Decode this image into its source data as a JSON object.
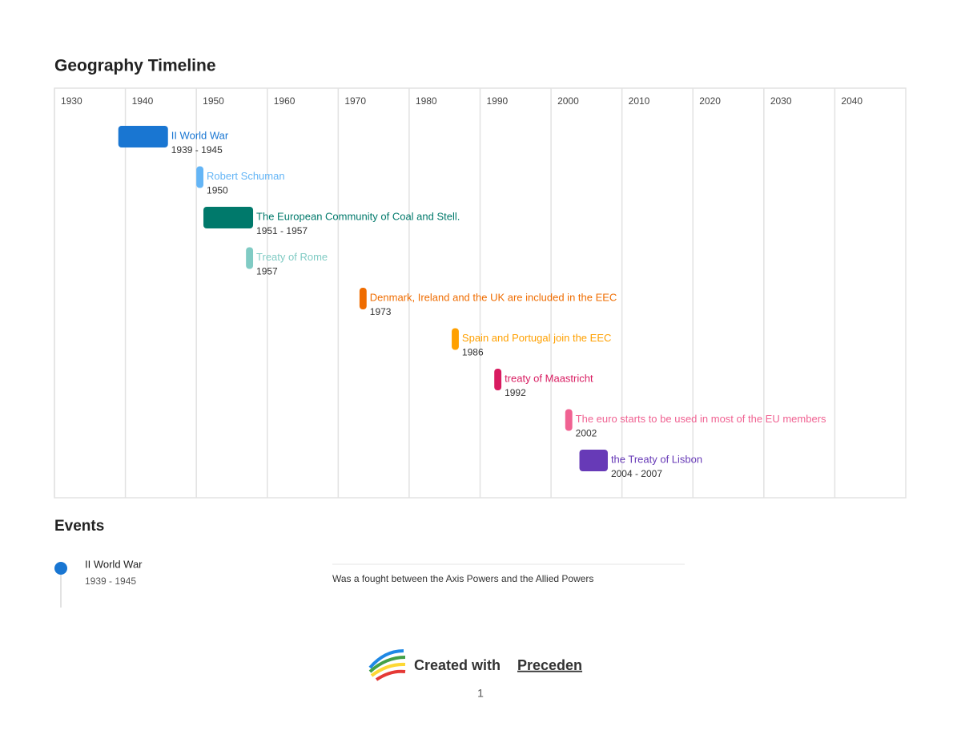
{
  "title": "Geography Timeline",
  "axis": {
    "lim": [
      1930,
      2050
    ],
    "ticks": [
      1930,
      1940,
      1950,
      1960,
      1970,
      1980,
      1990,
      2000,
      2010,
      2020,
      2030,
      2040
    ]
  },
  "events": [
    {
      "name": "II World War",
      "dates": "1939 - 1945",
      "start": 1939,
      "end": 1945,
      "color": "#1976d2"
    },
    {
      "name": "Robert Schuman",
      "dates": "1950",
      "start": 1950,
      "end": 1950,
      "color": "#64b5f6"
    },
    {
      "name": "The European Community of Coal and Stell.",
      "dates": "1951 - 1957",
      "start": 1951,
      "end": 1957,
      "color": "#00796b"
    },
    {
      "name": "Treaty of Rome",
      "dates": "1957",
      "start": 1957,
      "end": 1957,
      "color": "#80cbc4"
    },
    {
      "name": "Denmark, Ireland and the UK are included in the EEC",
      "dates": "1973",
      "start": 1973,
      "end": 1973,
      "color": "#ef6c00"
    },
    {
      "name": "Spain and Portugal join the EEC",
      "dates": "1986",
      "start": 1986,
      "end": 1986,
      "color": "#ffa000"
    },
    {
      "name": "treaty of Maastricht",
      "dates": "1992",
      "start": 1992,
      "end": 1992,
      "color": "#d81b60"
    },
    {
      "name": "The euro starts to be used in most of the EU members",
      "dates": "2002",
      "start": 2002,
      "end": 2002,
      "color": "#f06292"
    },
    {
      "name": "the Treaty of Lisbon",
      "dates": "2004 - 2007",
      "start": 2004,
      "end": 2007,
      "color": "#673ab7"
    }
  ],
  "events_section": {
    "title": "Events",
    "items": [
      {
        "name": "II World War",
        "dates": "1939 - 1945",
        "description": "Was a fought between the Axis Powers and the Allied Powers"
      }
    ]
  },
  "footer": {
    "text": "Created with",
    "brand": "Preceden",
    "page": "1"
  }
}
